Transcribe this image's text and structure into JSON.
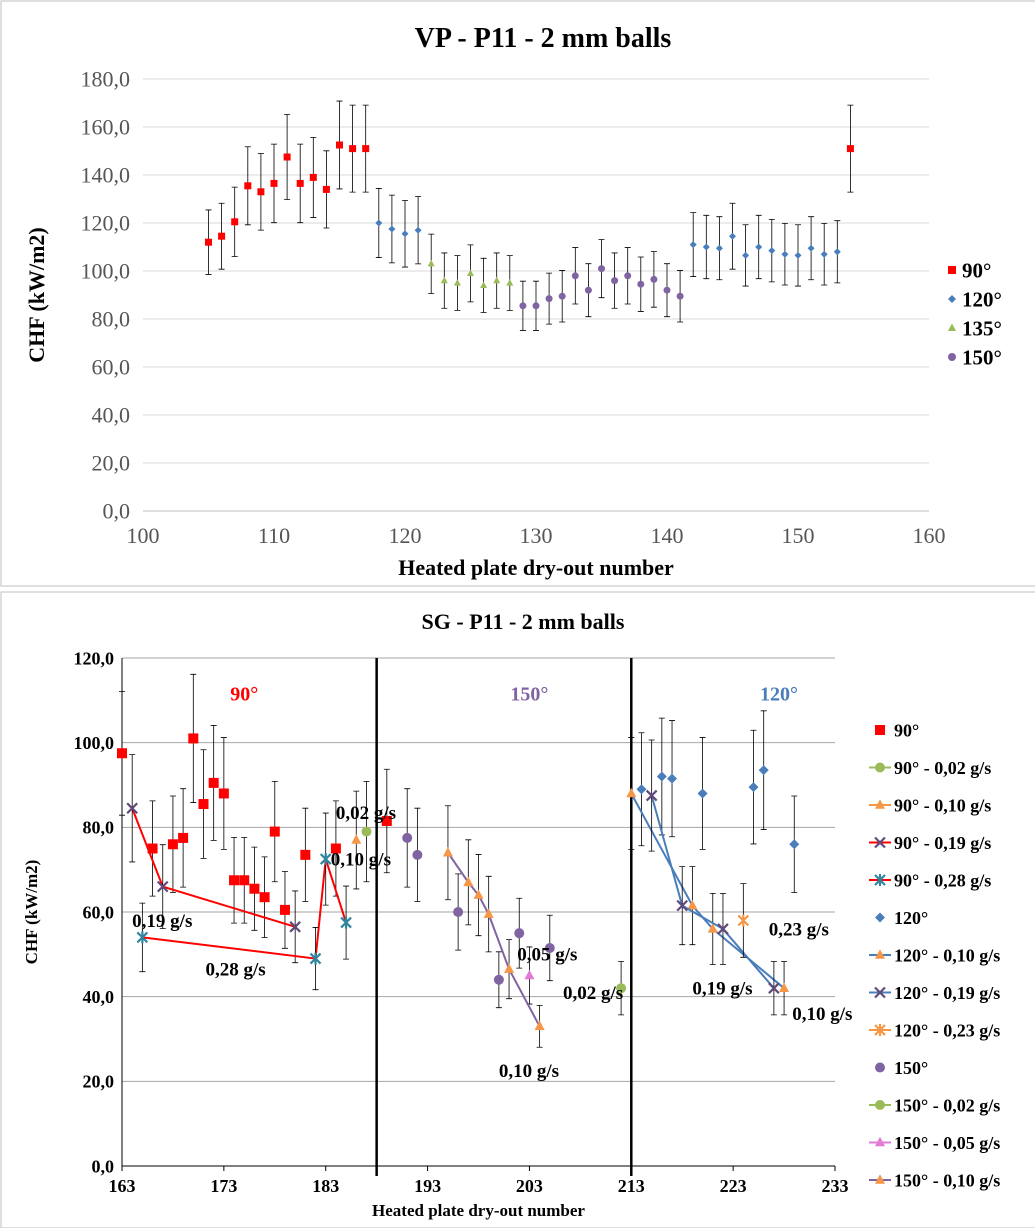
{
  "chart_data": [
    {
      "type": "scatter",
      "title": "VP - P11 - 2 mm balls",
      "xlabel": "Heated plate dry-out number",
      "ylabel": "CHF (kW/m2)",
      "xlim": [
        100,
        160
      ],
      "ylim": [
        0,
        180
      ],
      "xticks": [
        "100",
        "110",
        "120",
        "130",
        "140",
        "150",
        "160"
      ],
      "yticks": [
        "0,0",
        "20,0",
        "40,0",
        "60,0",
        "80,0",
        "100,0",
        "120,0",
        "140,0",
        "160,0",
        "180,0"
      ],
      "grid": "horizontal",
      "legend_position": "right",
      "series": [
        {
          "name": "90°",
          "marker": "square",
          "color": "#ff0000",
          "points": [
            [
              105,
              112
            ],
            [
              106,
              114.5
            ],
            [
              107,
              120.5
            ],
            [
              108,
              135.5
            ],
            [
              109,
              133
            ],
            [
              110,
              136.5
            ],
            [
              111,
              147.5
            ],
            [
              112,
              136.5
            ],
            [
              113,
              139
            ],
            [
              114,
              134
            ],
            [
              115,
              152.5
            ],
            [
              116,
              151
            ],
            [
              117,
              151
            ],
            [
              154,
              151
            ]
          ]
        },
        {
          "name": "120°",
          "marker": "diamond",
          "color": "#4a7ebb",
          "points": [
            [
              118,
              120
            ],
            [
              119,
              117.5
            ],
            [
              120,
              115.5
            ],
            [
              121,
              117
            ],
            [
              142,
              111
            ],
            [
              143,
              110
            ],
            [
              144,
              109.5
            ],
            [
              145,
              114.5
            ],
            [
              146,
              106.5
            ],
            [
              147,
              110
            ],
            [
              148,
              108.5
            ],
            [
              149,
              107
            ],
            [
              150,
              106.5
            ],
            [
              151,
              109.5
            ],
            [
              152,
              107
            ],
            [
              153,
              108
            ]
          ]
        },
        {
          "name": "135°",
          "marker": "triangle",
          "color": "#9bbb59",
          "points": [
            [
              122,
              103
            ],
            [
              123,
              96
            ],
            [
              124,
              95
            ],
            [
              125,
              99
            ],
            [
              126,
              94
            ],
            [
              127,
              96
            ],
            [
              128,
              95
            ]
          ]
        },
        {
          "name": "150°",
          "marker": "circle",
          "color": "#8064a2",
          "points": [
            [
              129,
              85.5
            ],
            [
              130,
              85.5
            ],
            [
              131,
              88.5
            ],
            [
              132,
              89.5
            ],
            [
              133,
              98
            ],
            [
              134,
              92
            ],
            [
              135,
              101
            ],
            [
              136,
              96
            ],
            [
              137,
              98
            ],
            [
              138,
              94.5
            ],
            [
              139,
              96.5
            ],
            [
              140,
              92
            ],
            [
              141,
              89.5
            ]
          ]
        }
      ]
    },
    {
      "type": "scatter",
      "title": "SG - P11 - 2 mm balls",
      "xlabel": "Heated plate dry-out number",
      "ylabel": "CHF (kW/m2)",
      "xlim": [
        163,
        233
      ],
      "ylim": [
        0,
        120
      ],
      "xticks": [
        "163",
        "173",
        "183",
        "193",
        "203",
        "213",
        "223",
        "233"
      ],
      "yticks": [
        "0,0",
        "20,0",
        "40,0",
        "60,0",
        "80,0",
        "100,0",
        "120,0"
      ],
      "grid": "horizontal",
      "legend_position": "right",
      "vertical_lines": [
        188,
        213
      ],
      "region_labels": [
        {
          "text": "90°",
          "x": 175,
          "y": 110,
          "color": "#ff0000"
        },
        {
          "text": "150°",
          "x": 203,
          "y": 110,
          "color": "#8064a2"
        },
        {
          "text": "120°",
          "x": 227.5,
          "y": 110,
          "color": "#4a7ebb"
        }
      ],
      "annotations": [
        {
          "text": "0,02 g/s",
          "x": 184,
          "y": 82
        },
        {
          "text": "0,10 g/s",
          "x": 183.5,
          "y": 71
        },
        {
          "text": "0,19 g/s",
          "x": 164,
          "y": 56.5
        },
        {
          "text": "0,28 g/s",
          "x": 171.2,
          "y": 45
        },
        {
          "text": "0,05 g/s",
          "x": 201.8,
          "y": 48.5
        },
        {
          "text": "0,02 g/s",
          "x": 206.3,
          "y": 39.5
        },
        {
          "text": "0,10 g/s",
          "x": 200,
          "y": 21
        },
        {
          "text": "0,23 g/s",
          "x": 226.5,
          "y": 54.5
        },
        {
          "text": "0,19 g/s",
          "x": 219,
          "y": 40.5
        },
        {
          "text": "0,10 g/s",
          "x": 228.8,
          "y": 34.5
        }
      ],
      "series": [
        {
          "name": "90°",
          "marker": "square",
          "color": "#ff0000",
          "line": false,
          "points": [
            [
              163,
              97.5
            ],
            [
              166,
              75
            ],
            [
              168,
              76
            ],
            [
              169,
              77.5
            ],
            [
              170,
              101
            ],
            [
              171,
              85.5
            ],
            [
              172,
              90.5
            ],
            [
              173,
              88
            ],
            [
              174,
              67.5
            ],
            [
              175,
              67.5
            ],
            [
              176,
              65.5
            ],
            [
              177,
              63.5
            ],
            [
              178,
              79
            ],
            [
              179,
              60.5
            ],
            [
              181,
              73.5
            ],
            [
              184,
              75
            ],
            [
              189,
              81.5
            ]
          ]
        },
        {
          "name": "90° - 0,02 g/s",
          "marker": "circle",
          "color": "#9bbb59",
          "line": true,
          "points": [
            [
              187,
              79
            ]
          ]
        },
        {
          "name": "90° - 0,10 g/s",
          "marker": "triangle",
          "color": "#f79646",
          "line": true,
          "points": [
            [
              186,
              77
            ]
          ]
        },
        {
          "name": "90° - 0,19 g/s",
          "marker": "x",
          "color": "#604a7b",
          "line": true,
          "line_color": "#ff0000",
          "points": [
            [
              164,
              84.5
            ],
            [
              167,
              66
            ],
            [
              180,
              56.5
            ]
          ]
        },
        {
          "name": "90° - 0,28 g/s",
          "marker": "star",
          "color": "#31859c",
          "line": true,
          "line_color": "#ff0000",
          "points": [
            [
              165,
              54
            ],
            [
              182,
              49
            ],
            [
              183,
              72.5
            ],
            [
              185,
              57.5
            ]
          ]
        },
        {
          "name": "120°",
          "marker": "diamond",
          "color": "#4a7ebb",
          "line": false,
          "points": [
            [
              214,
              89
            ],
            [
              216,
              92
            ],
            [
              217,
              91.5
            ],
            [
              220,
              88
            ],
            [
              225,
              89.5
            ],
            [
              226,
              93.5
            ],
            [
              229,
              76
            ]
          ]
        },
        {
          "name": "120° - 0,10 g/s",
          "marker": "triangle",
          "color": "#f79646",
          "line": true,
          "line_color": "#4a7ebb",
          "points": [
            [
              213,
              88
            ],
            [
              219,
              61.5
            ],
            [
              221,
              56
            ],
            [
              228,
              42
            ]
          ]
        },
        {
          "name": "120° - 0,19 g/s",
          "marker": "x",
          "color": "#604a7b",
          "line": true,
          "line_color": "#4a7ebb",
          "points": [
            [
              215,
              87.5
            ],
            [
              218,
              61.5
            ],
            [
              222,
              56
            ],
            [
              227,
              42
            ]
          ]
        },
        {
          "name": "120° - 0,23 g/s",
          "marker": "star",
          "color": "#f79646",
          "line": true,
          "points": [
            [
              224,
              58
            ]
          ]
        },
        {
          "name": "150°",
          "marker": "circle",
          "color": "#8064a2",
          "line": false,
          "points": [
            [
              191,
              77.5
            ],
            [
              192,
              73.5
            ],
            [
              196,
              60
            ],
            [
              200,
              44
            ],
            [
              202,
              55
            ],
            [
              205,
              51.5
            ]
          ]
        },
        {
          "name": "150° - 0,02 g/s",
          "marker": "circle",
          "color": "#9bbb59",
          "line": true,
          "points": [
            [
              212,
              42
            ]
          ]
        },
        {
          "name": "150° - 0,05 g/s",
          "marker": "triangle",
          "color": "#e37ad6",
          "line": true,
          "points": [
            [
              203,
              45
            ]
          ]
        },
        {
          "name": "150° - 0,10 g/s",
          "marker": "triangle",
          "color": "#f79646",
          "line": true,
          "line_color": "#8064a2",
          "points": [
            [
              195,
              74
            ],
            [
              197,
              67
            ],
            [
              198,
              64
            ],
            [
              199,
              59.5
            ],
            [
              201,
              46.5
            ],
            [
              204,
              33
            ]
          ]
        }
      ]
    }
  ]
}
